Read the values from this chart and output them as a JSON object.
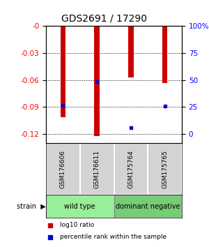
{
  "title": "GDS2691 / 17290",
  "samples": [
    "GSM176606",
    "GSM176611",
    "GSM175764",
    "GSM175765"
  ],
  "log10_ratio": [
    -0.101,
    -0.122,
    -0.057,
    -0.063
  ],
  "percentile_rank": [
    -0.088,
    -0.062,
    -0.113,
    -0.089
  ],
  "ylim_min": -0.13,
  "ylim_max": 0.0,
  "yticks_left": [
    0,
    -0.03,
    -0.06,
    -0.09,
    -0.12
  ],
  "yticks_left_labels": [
    "-0",
    "-0.03",
    "-0.06",
    "-0.09",
    "-0.12"
  ],
  "yticks_right_values": [
    0,
    -0.03,
    -0.06,
    -0.09,
    -0.12
  ],
  "yticks_right_labels": [
    "100%",
    "75",
    "50",
    "25",
    "0"
  ],
  "bar_color": "#cc0000",
  "dot_color": "#0000cc",
  "groups": [
    {
      "label": "wild type",
      "indices": [
        0,
        1
      ],
      "color": "#99ee99"
    },
    {
      "label": "dominant negative",
      "indices": [
        2,
        3
      ],
      "color": "#77cc77"
    }
  ],
  "legend_items": [
    {
      "color": "#cc0000",
      "label": "log10 ratio"
    },
    {
      "color": "#0000cc",
      "label": "percentile rank within the sample"
    }
  ],
  "bar_width": 0.15,
  "grid_color": "black",
  "grid_linestyle": ":",
  "background_color": "white",
  "label_bg_color": "#cccccc",
  "sample_box_color": "#d3d3d3"
}
